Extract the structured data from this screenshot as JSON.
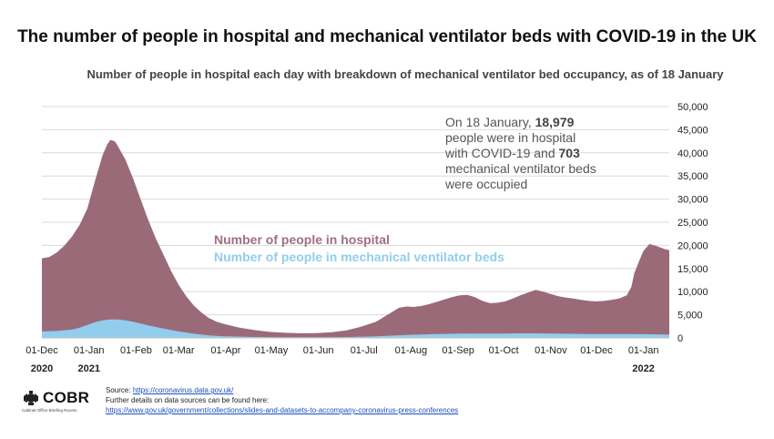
{
  "title": "The number of people in hospital and mechanical ventilator beds with COVID-19 in the UK",
  "subtitle": "Number of people in hospital each day with breakdown of mechanical ventilator bed occupancy, as of 18 January",
  "annotation": {
    "line1_prefix": "On 18 January,",
    "hospital_value": "18,979",
    "line2": "people were in hospital",
    "line3_prefix": "with COVID-19 and",
    "ventilator_value": "703",
    "line4": "mechanical ventilator beds",
    "line5": "were occupied"
  },
  "legend": {
    "hospital": "Number of people in hospital",
    "ventilator": "Number of people in mechanical ventilator beds"
  },
  "footer": {
    "logo_text": "COBR",
    "logo_subtext": "Cabinet Office Briefing Rooms",
    "source_label": "Source:",
    "source_link": "https://coronavirus.data.gov.uk/",
    "details_text": "Further details on data sources can be found here:",
    "details_link": "https://www.gov.uk/government/collections/slides-and-datasets-to-accompany-coronavirus-press-conferences"
  },
  "colors": {
    "hospital": "#9b6a78",
    "ventilator": "#92cdee",
    "grid": "#d9d9d9",
    "axis_text": "#222222"
  },
  "chart_data": {
    "type": "area",
    "title": "The number of people in hospital and mechanical ventilator beds with COVID-19 in the UK",
    "ylim": [
      0,
      50000
    ],
    "yticks": [
      0,
      5000,
      10000,
      15000,
      20000,
      25000,
      30000,
      35000,
      40000,
      45000,
      50000
    ],
    "ytick_labels": [
      "0",
      "5,000",
      "10,000",
      "15,000",
      "20,000",
      "25,000",
      "30,000",
      "35,000",
      "40,000",
      "45,000",
      "50,000"
    ],
    "xlim_days": [
      0,
      413
    ],
    "x_ticks": [
      {
        "day": 0,
        "label": "01-Dec"
      },
      {
        "day": 31,
        "label": "01-Jan"
      },
      {
        "day": 62,
        "label": "01-Feb"
      },
      {
        "day": 90,
        "label": "01-Mar"
      },
      {
        "day": 121,
        "label": "01-Apr"
      },
      {
        "day": 151,
        "label": "01-May"
      },
      {
        "day": 182,
        "label": "01-Jun"
      },
      {
        "day": 212,
        "label": "01-Jul"
      },
      {
        "day": 243,
        "label": "01-Aug"
      },
      {
        "day": 274,
        "label": "01-Sep"
      },
      {
        "day": 304,
        "label": "01-Oct"
      },
      {
        "day": 335,
        "label": "01-Nov"
      },
      {
        "day": 365,
        "label": "01-Dec"
      },
      {
        "day": 396,
        "label": "01-Jan"
      }
    ],
    "year_labels": [
      {
        "day": 0,
        "label": "2020"
      },
      {
        "day": 31,
        "label": "2021"
      },
      {
        "day": 396,
        "label": "2022"
      }
    ],
    "series": [
      {
        "name": "Number of people in hospital",
        "days": [
          0,
          5,
          10,
          15,
          20,
          25,
          30,
          35,
          40,
          43,
          45,
          48,
          50,
          55,
          60,
          65,
          70,
          75,
          80,
          85,
          90,
          95,
          100,
          105,
          110,
          115,
          120,
          130,
          140,
          150,
          160,
          170,
          180,
          190,
          200,
          210,
          220,
          225,
          230,
          235,
          240,
          245,
          250,
          255,
          260,
          265,
          270,
          275,
          280,
          285,
          290,
          295,
          300,
          305,
          310,
          315,
          320,
          325,
          330,
          335,
          340,
          345,
          350,
          355,
          360,
          365,
          370,
          375,
          380,
          385,
          388,
          390,
          393,
          396,
          400,
          405,
          410,
          413
        ],
        "values": [
          17200,
          17500,
          18500,
          20000,
          22000,
          24500,
          28000,
          34000,
          39500,
          41800,
          42800,
          42500,
          41500,
          38500,
          34500,
          30000,
          25500,
          21500,
          18000,
          14500,
          11500,
          9000,
          7000,
          5500,
          4300,
          3500,
          3000,
          2200,
          1700,
          1300,
          1100,
          1000,
          1050,
          1200,
          1600,
          2400,
          3500,
          4500,
          5500,
          6500,
          6800,
          6700,
          6900,
          7300,
          7800,
          8300,
          8800,
          9200,
          9300,
          8800,
          8000,
          7500,
          7600,
          7900,
          8500,
          9200,
          9800,
          10400,
          10000,
          9500,
          9000,
          8700,
          8500,
          8200,
          8000,
          7900,
          8000,
          8200,
          8500,
          9200,
          11000,
          14000,
          16500,
          18800,
          20300,
          19800,
          19200,
          18979
        ]
      },
      {
        "name": "Number of people in mechanical ventilator beds",
        "days": [
          0,
          10,
          20,
          25,
          30,
          35,
          40,
          45,
          50,
          55,
          60,
          65,
          70,
          80,
          90,
          100,
          110,
          120,
          140,
          160,
          180,
          200,
          220,
          240,
          260,
          280,
          300,
          320,
          340,
          360,
          380,
          396,
          413
        ],
        "values": [
          1400,
          1500,
          1800,
          2200,
          2800,
          3400,
          3800,
          4000,
          4000,
          3800,
          3500,
          3100,
          2700,
          2000,
          1400,
          900,
          550,
          350,
          200,
          150,
          150,
          180,
          350,
          650,
          850,
          950,
          900,
          1000,
          900,
          850,
          850,
          800,
          703
        ]
      }
    ]
  }
}
